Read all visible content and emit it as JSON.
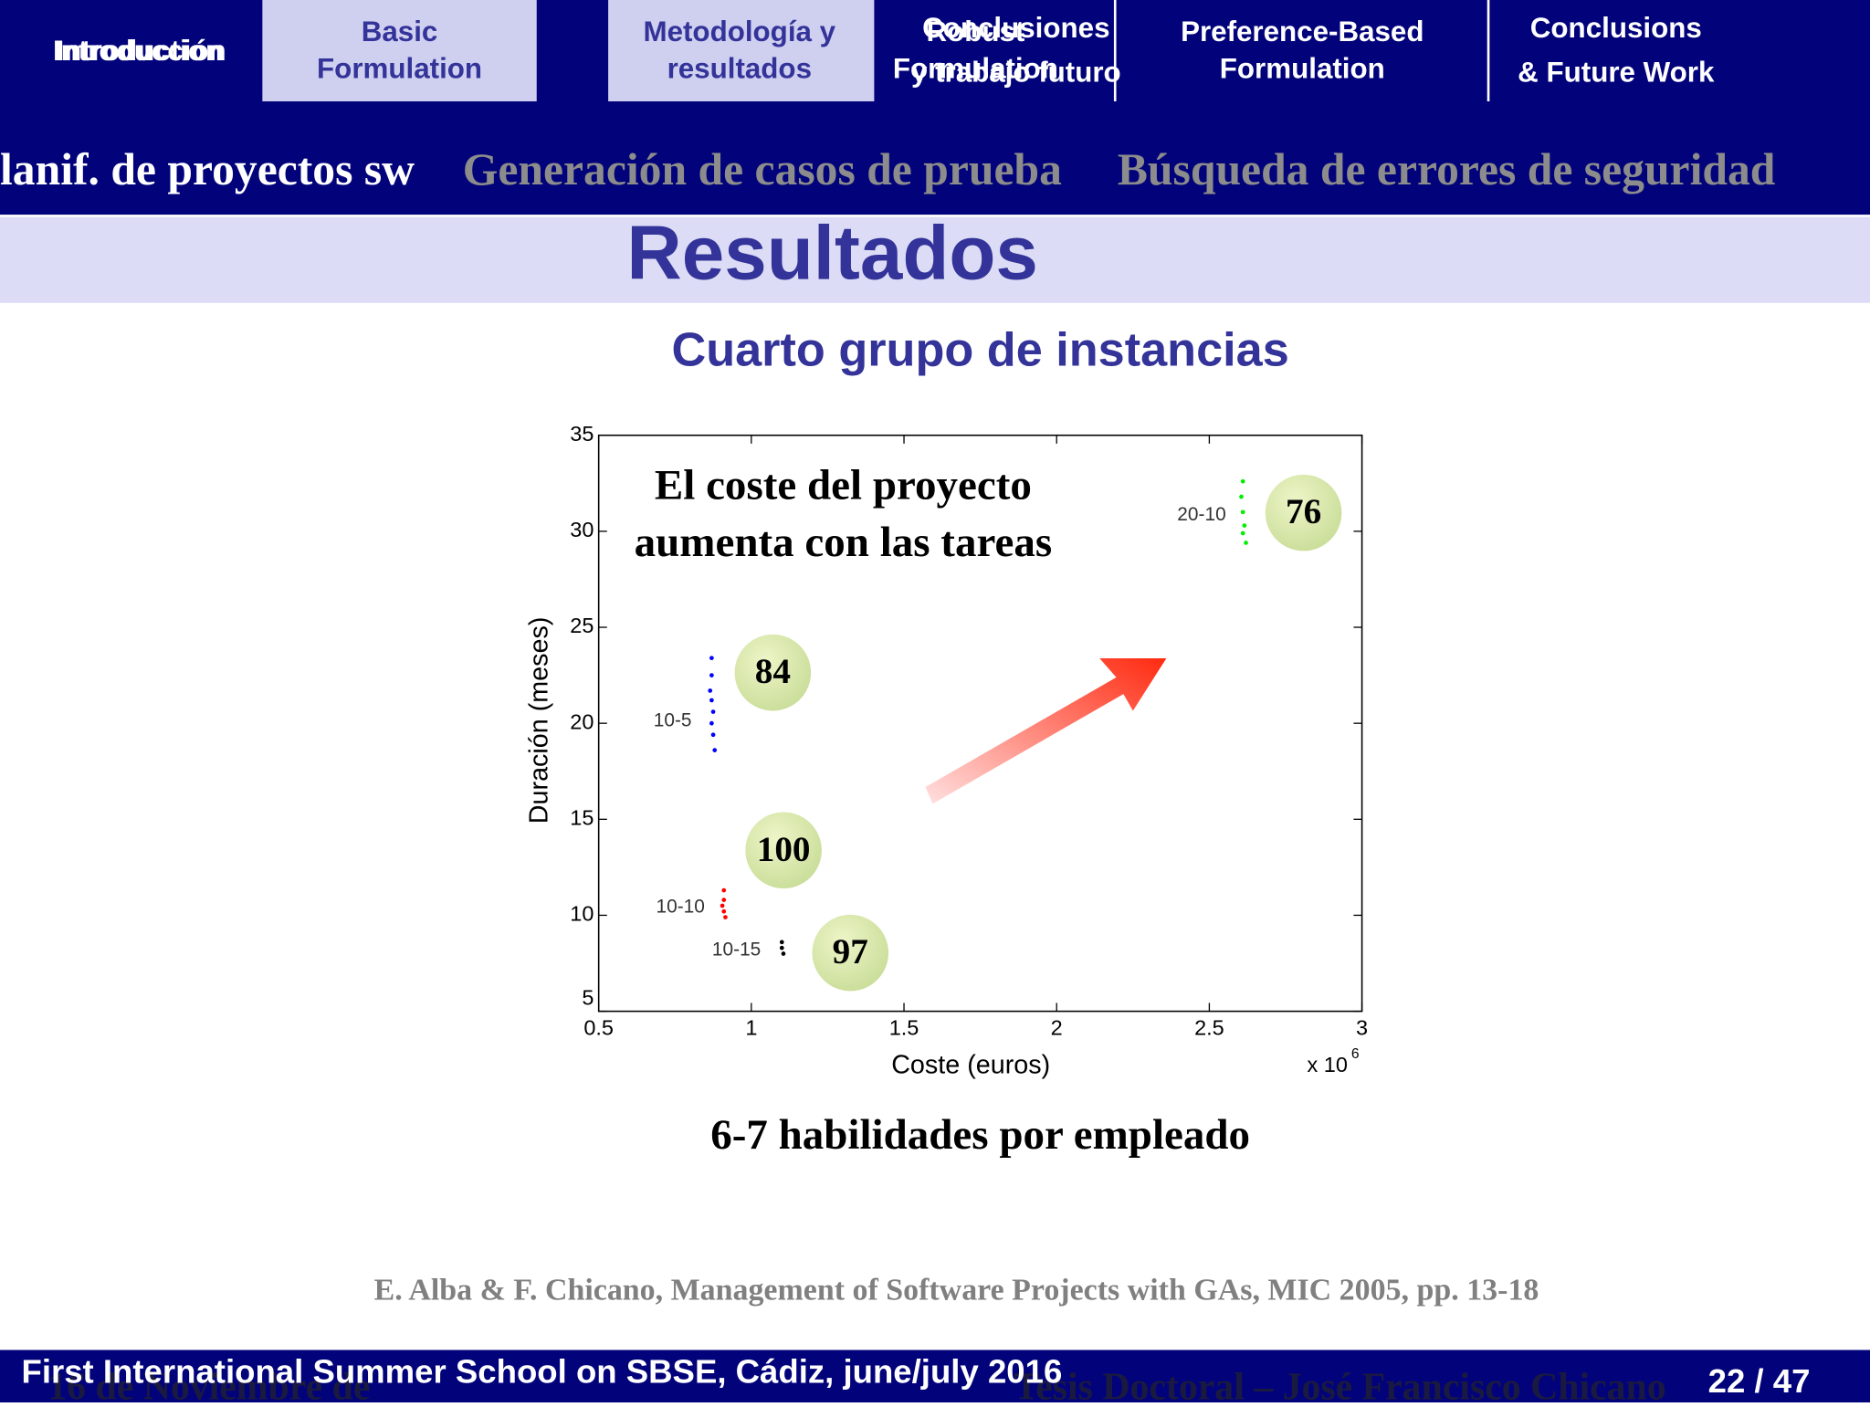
{
  "nav": {
    "tabs": [
      [
        "Introduction",
        "Introducción"
      ],
      [
        "Basic",
        "Formulation"
      ],
      [
        "Metodología y",
        "resultados"
      ],
      [
        "Conclusiones",
        "y trabajo futuro"
      ],
      [
        "Robust",
        "Formulation"
      ],
      [
        "Preference-Based",
        "Formulation"
      ],
      [
        "Conclusions",
        "& Future Work"
      ]
    ]
  },
  "subnav": [
    "lanif. de proyectos sw",
    "Generación de casos de prueba",
    "Búsqueda de errores de seguridad"
  ],
  "slide": {
    "title": "Resultados",
    "subtitle": "Cuarto grupo de instancias",
    "caption": "6-7 habilidades por empleado",
    "reference": "E. Alba & F. Chicano, Management of Software Projects with GAs, MIC 2005, pp. 13-18"
  },
  "footer": {
    "event": "First International Summer School on SBSE, Cádiz, june/july 2016",
    "date": "16 de Noviembre de",
    "thesis": "Tesis Doctoral – José Francisco Chicano",
    "page": "22 / 47"
  },
  "chart_data": {
    "type": "scatter",
    "x_label": "Coste (euros)",
    "y_label": "Duración (meses)",
    "x_multiplier": "x 10",
    "x_multiplier_exponent": "6",
    "annotation": [
      "El coste del proyecto",
      "aumenta con las tareas"
    ],
    "xlim": [
      0.5,
      3
    ],
    "ylim": [
      5,
      35
    ],
    "xticks": [
      0.5,
      1,
      1.5,
      2,
      2.5,
      3
    ],
    "yticks": [
      5,
      10,
      15,
      20,
      25,
      30,
      35
    ],
    "series": [
      {
        "name": "10-5",
        "color": "#0000ff",
        "badge": 84,
        "x": [
          0.87,
          0.87,
          0.865,
          0.87,
          0.875,
          0.87,
          0.875,
          0.88
        ],
        "values": [
          23.4,
          22.5,
          21.7,
          21.2,
          20.6,
          20,
          19.4,
          18.6
        ]
      },
      {
        "name": "10-10",
        "color": "#ff0000",
        "badge": 100,
        "x": [
          0.91,
          0.91,
          0.905,
          0.91,
          0.915
        ],
        "values": [
          11.3,
          10.8,
          10.5,
          10.2,
          9.9
        ]
      },
      {
        "name": "10-15",
        "color": "#000000",
        "badge": 97,
        "x": [
          1.1,
          1.1,
          1.105
        ],
        "values": [
          8.6,
          8.3,
          8
        ]
      },
      {
        "name": "20-10",
        "color": "#00ee00",
        "badge": 76,
        "x": [
          2.61,
          2.605,
          2.61,
          2.615,
          2.61,
          2.62
        ],
        "values": [
          32.6,
          31.8,
          31,
          30.3,
          29.9,
          29.4
        ]
      }
    ]
  }
}
